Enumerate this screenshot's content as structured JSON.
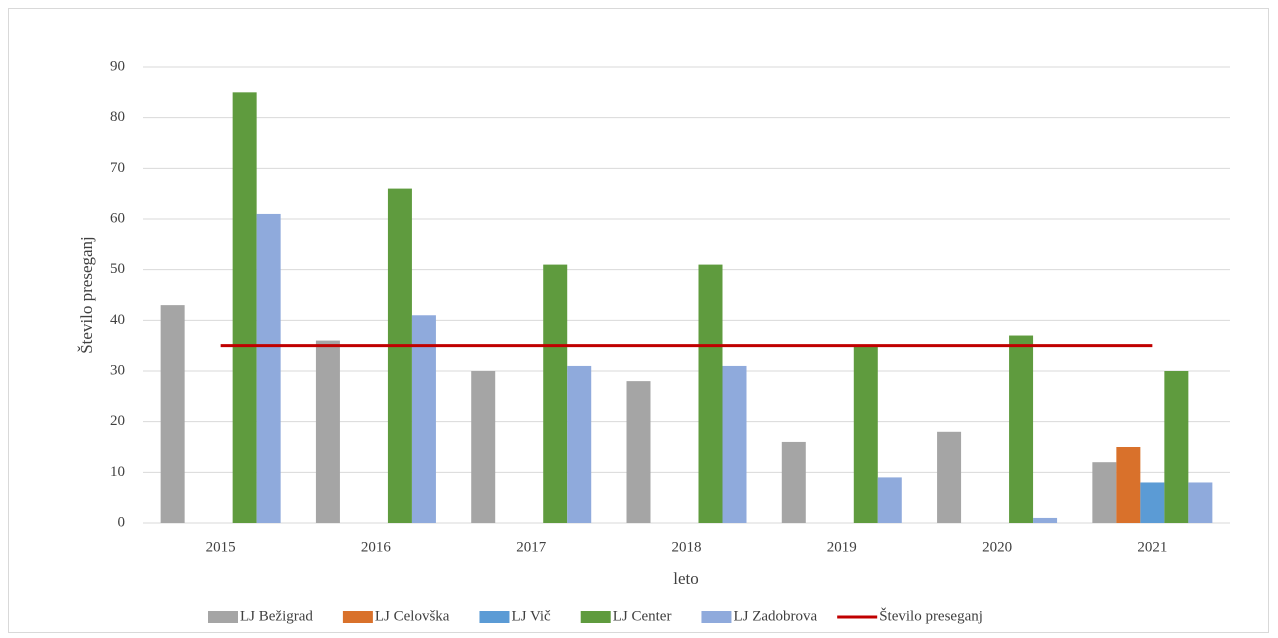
{
  "chart_data": {
    "type": "bar",
    "y_label": "Število preseganj",
    "x_label": "leto",
    "categories": [
      "2015",
      "2016",
      "2017",
      "2018",
      "2019",
      "2020",
      "2021"
    ],
    "series": [
      {
        "name": "LJ Bežigrad",
        "color": "#a5a5a5",
        "values": [
          43,
          36,
          30,
          28,
          16,
          18,
          12
        ]
      },
      {
        "name": "LJ Celovška",
        "color": "#d9712b",
        "values": [
          null,
          null,
          null,
          null,
          null,
          null,
          15
        ]
      },
      {
        "name": "LJ Vič",
        "color": "#5b9bd5",
        "values": [
          null,
          null,
          null,
          null,
          null,
          null,
          8
        ]
      },
      {
        "name": "LJ Center",
        "color": "#5f9b3e",
        "values": [
          85,
          66,
          51,
          51,
          35,
          37,
          30
        ]
      },
      {
        "name": "LJ Zadobrova",
        "color": "#8faadc",
        "values": [
          61,
          41,
          31,
          31,
          9,
          1,
          8
        ]
      },
      {
        "name": "Število preseganj",
        "type": "line",
        "color": "#c00000",
        "values": [
          35,
          35,
          35,
          35,
          35,
          35,
          35
        ]
      }
    ],
    "ylim": [
      0,
      90
    ],
    "yticks": [
      0,
      10,
      20,
      30,
      40,
      50,
      60,
      70,
      80,
      90
    ],
    "grid": true,
    "legend": "bottom"
  }
}
